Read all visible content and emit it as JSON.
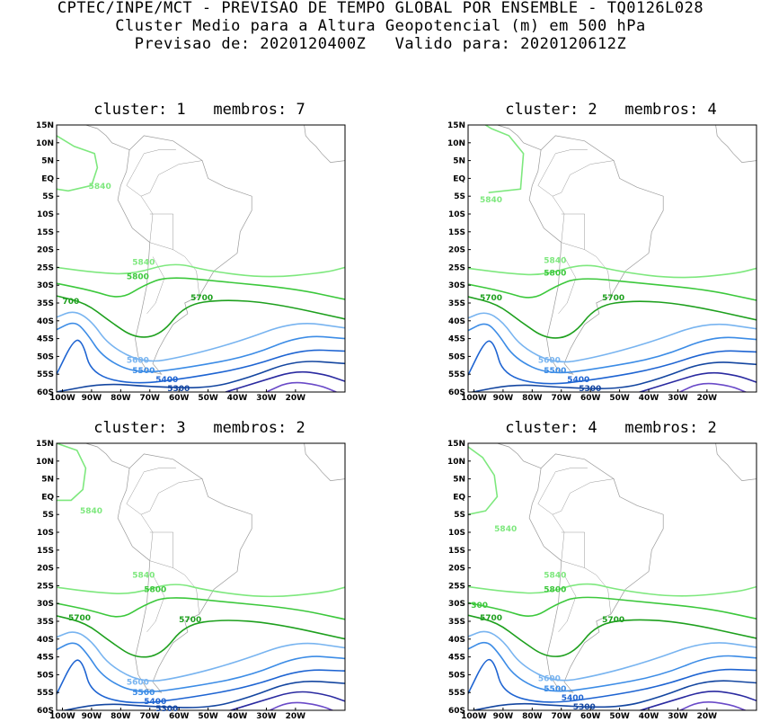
{
  "header": {
    "line1": "CPTEC/INPE/MCT - PREVISAO DE TEMPO GLOBAL POR ENSEMBLE - TQ0126L028",
    "line2": "Cluster Medio para a Altura Geopotencial (m) em 500 hPa",
    "line3": "Previsao de: 2020120400Z   Valido para: 2020120612Z"
  },
  "axes": {
    "lat_labels": [
      "15N",
      "10N",
      "5N",
      "EQ",
      "5S",
      "10S",
      "15S",
      "20S",
      "25S",
      "30S",
      "35S",
      "40S",
      "45S",
      "50S",
      "55S",
      "60S"
    ],
    "lon_labels": [
      "100W",
      "90W",
      "80W",
      "70W",
      "60W",
      "50W",
      "40W",
      "30W",
      "20W"
    ]
  },
  "colors": {
    "c5840": "#7ee87e",
    "c5800": "#3cc83c",
    "c5700": "#1ea01e",
    "c5600": "#78b4f0",
    "c5500": "#3c8ce6",
    "c5400": "#1e64d2",
    "c5300": "#1446a0",
    "c5200": "#2a2aa0",
    "c5100": "#6a4ac8",
    "land": "#9a9a9a"
  },
  "panels": [
    {
      "title": "cluster: 1   membros: 7",
      "labels": [
        "5840",
        "5840",
        "5800",
        "5700",
        "700",
        "5600",
        "5500",
        "5400",
        "5300"
      ]
    },
    {
      "title": "cluster: 2   membros: 4",
      "labels": [
        "5840",
        "5840",
        "5800",
        "5700",
        "5700",
        "5600",
        "5500",
        "5400",
        "5300"
      ]
    },
    {
      "title": "cluster: 3   membros: 2",
      "labels": [
        "5840",
        "5840",
        "5800",
        "5700",
        "5700",
        "5600",
        "5500",
        "5400",
        "5300"
      ]
    },
    {
      "title": "cluster: 4   membros: 2",
      "labels": [
        "5840",
        "5840",
        "5800",
        "5700",
        "5700",
        "5600",
        "5500",
        "5400",
        "5300",
        "300"
      ]
    }
  ]
}
